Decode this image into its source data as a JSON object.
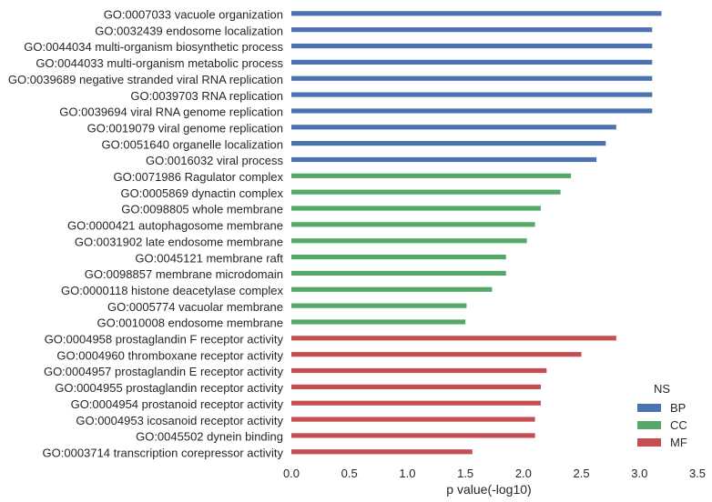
{
  "chart_data": {
    "type": "bar",
    "orientation": "horizontal",
    "title": "",
    "xlabel": "p value(-log10)",
    "ylabel": "",
    "xlim": [
      0,
      3.5
    ],
    "xticks": [
      "0.0",
      "0.5",
      "1.0",
      "1.5",
      "2.0",
      "2.5",
      "3.0",
      "3.5"
    ],
    "grid": false,
    "legend": {
      "title": "NS",
      "placement": "lower-right",
      "entries": [
        {
          "name": "BP",
          "color": "#4c72b0"
        },
        {
          "name": "CC",
          "color": "#55a868"
        },
        {
          "name": "MF",
          "color": "#c44e52"
        }
      ]
    },
    "categories": [
      "GO:0007033 vacuole organization",
      "GO:0032439 endosome localization",
      "GO:0044034 multi-organism biosynthetic process",
      "GO:0044033 multi-organism metabolic process",
      "GO:0039689 negative stranded viral RNA replication",
      "GO:0039703 RNA replication",
      "GO:0039694 viral RNA genome replication",
      "GO:0019079 viral genome replication",
      "GO:0051640 organelle localization",
      "GO:0016032 viral process",
      "GO:0071986 Ragulator complex",
      "GO:0005869 dynactin complex",
      "GO:0098805 whole membrane",
      "GO:0000421 autophagosome membrane",
      "GO:0031902 late endosome membrane",
      "GO:0045121 membrane raft",
      "GO:0098857 membrane microdomain",
      "GO:0000118 histone deacetylase complex",
      "GO:0005774 vacuolar membrane",
      "GO:0010008 endosome membrane",
      "GO:0004958 prostaglandin F receptor activity",
      "GO:0004960 thromboxane receptor activity",
      "GO:0004957 prostaglandin E receptor activity",
      "GO:0004955 prostaglandin receptor activity",
      "GO:0004954 prostanoid receptor activity",
      "GO:0004953 icosanoid receptor activity",
      "GO:0045502 dynein binding",
      "GO:0003714 transcription corepressor activity"
    ],
    "groups": [
      "BP",
      "BP",
      "BP",
      "BP",
      "BP",
      "BP",
      "BP",
      "BP",
      "BP",
      "BP",
      "CC",
      "CC",
      "CC",
      "CC",
      "CC",
      "CC",
      "CC",
      "CC",
      "CC",
      "CC",
      "MF",
      "MF",
      "MF",
      "MF",
      "MF",
      "MF",
      "MF",
      "MF"
    ],
    "values": [
      3.19,
      3.11,
      3.11,
      3.11,
      3.11,
      3.11,
      3.11,
      2.8,
      2.71,
      2.63,
      2.41,
      2.32,
      2.15,
      2.1,
      2.03,
      1.85,
      1.85,
      1.73,
      1.51,
      1.5,
      2.8,
      2.5,
      2.2,
      2.15,
      2.15,
      2.1,
      2.1,
      1.56
    ]
  }
}
